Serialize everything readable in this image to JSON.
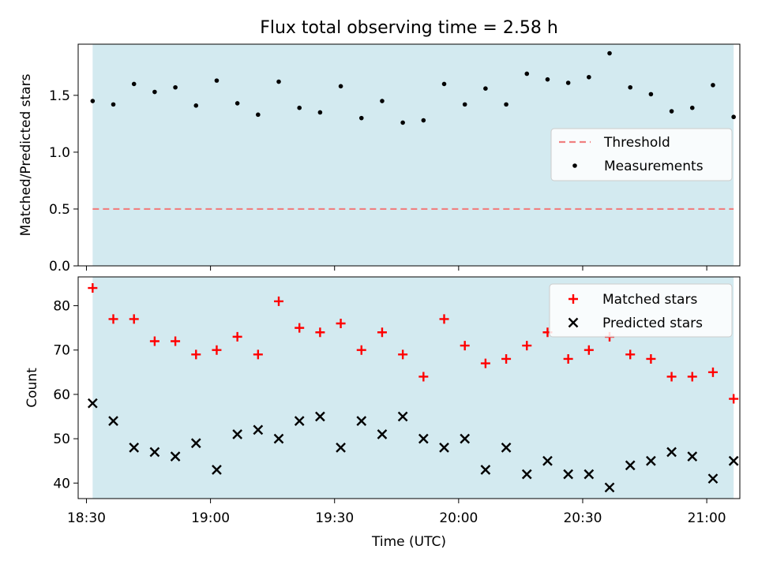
{
  "chart_data": [
    {
      "type": "scatter",
      "title": "Flux total observing time = 2.58 h",
      "xlabel": "",
      "ylabel": "Matched/Predicted stars",
      "ylim": [
        0,
        1.95
      ],
      "xlim_min": [
        1108,
        1268
      ],
      "yticks": [
        "0.0",
        "0.5",
        "1.0",
        "1.5"
      ],
      "ytick_values": [
        0,
        0.5,
        1.0,
        1.5
      ],
      "shaded_region_min": [
        1111.5,
        1266.5
      ],
      "shaded_color": "#d3eaf0",
      "threshold": {
        "name": "Threshold",
        "value": 0.5,
        "color": "#f08080",
        "style": "dashed"
      },
      "series": [
        {
          "name": "Measurements",
          "color": "#000000",
          "x_min": [
            1111.5,
            1116.5,
            1121.5,
            1126.5,
            1131.5,
            1136.5,
            1141.5,
            1146.5,
            1151.5,
            1156.5,
            1161.5,
            1166.5,
            1171.5,
            1176.5,
            1181.5,
            1186.5,
            1191.5,
            1196.5,
            1201.5,
            1206.5,
            1211.5,
            1216.5,
            1221.5,
            1226.5,
            1231.5,
            1236.5,
            1241.5,
            1246.5,
            1251.5,
            1256.5,
            1261.5,
            1266.5
          ],
          "values": [
            1.45,
            1.42,
            1.6,
            1.53,
            1.57,
            1.41,
            1.63,
            1.43,
            1.33,
            1.62,
            1.39,
            1.35,
            1.58,
            1.3,
            1.45,
            1.26,
            1.28,
            1.6,
            1.42,
            1.56,
            1.42,
            1.69,
            1.64,
            1.61,
            1.66,
            1.87,
            1.57,
            1.51,
            1.36,
            1.39,
            1.59,
            1.31
          ]
        }
      ],
      "legend_location": "center-right"
    },
    {
      "type": "scatter",
      "xlabel": "Time (UTC)",
      "ylabel": "Count",
      "ylim": [
        36.5,
        86.5
      ],
      "xlim_min": [
        1108,
        1268
      ],
      "xticks": [
        "18:30",
        "19:00",
        "19:30",
        "20:00",
        "20:30",
        "21:00"
      ],
      "xtick_values_min": [
        1110,
        1140,
        1170,
        1200,
        1230,
        1260
      ],
      "yticks": [
        "40",
        "50",
        "60",
        "70",
        "80"
      ],
      "ytick_values": [
        40,
        50,
        60,
        70,
        80
      ],
      "shaded_region_min": [
        1111.5,
        1266.5
      ],
      "shaded_color": "#d3eaf0",
      "series": [
        {
          "name": "Matched stars",
          "marker": "+",
          "color": "#ff0000",
          "x_min": [
            1111.5,
            1116.5,
            1121.5,
            1126.5,
            1131.5,
            1136.5,
            1141.5,
            1146.5,
            1151.5,
            1156.5,
            1161.5,
            1166.5,
            1171.5,
            1176.5,
            1181.5,
            1186.5,
            1191.5,
            1196.5,
            1201.5,
            1206.5,
            1211.5,
            1216.5,
            1221.5,
            1226.5,
            1231.5,
            1236.5,
            1241.5,
            1246.5,
            1251.5,
            1256.5,
            1261.5,
            1266.5
          ],
          "values": [
            84,
            77,
            77,
            72,
            72,
            69,
            70,
            73,
            69,
            81,
            75,
            74,
            76,
            70,
            74,
            69,
            64,
            77,
            71,
            67,
            68,
            71,
            74,
            68,
            70,
            73,
            69,
            68,
            64,
            64,
            65,
            59
          ]
        },
        {
          "name": "Predicted stars",
          "marker": "x",
          "color": "#000000",
          "x_min": [
            1111.5,
            1116.5,
            1121.5,
            1126.5,
            1131.5,
            1136.5,
            1141.5,
            1146.5,
            1151.5,
            1156.5,
            1161.5,
            1166.5,
            1171.5,
            1176.5,
            1181.5,
            1186.5,
            1191.5,
            1196.5,
            1201.5,
            1206.5,
            1211.5,
            1216.5,
            1221.5,
            1226.5,
            1231.5,
            1236.5,
            1241.5,
            1246.5,
            1251.5,
            1256.5,
            1261.5,
            1266.5
          ],
          "values": [
            58,
            54,
            48,
            47,
            46,
            49,
            43,
            51,
            52,
            50,
            54,
            55,
            48,
            54,
            51,
            55,
            50,
            48,
            50,
            43,
            48,
            42,
            45,
            42,
            42,
            39,
            44,
            45,
            47,
            46,
            41,
            45
          ]
        }
      ],
      "legend_location": "top-right"
    }
  ]
}
